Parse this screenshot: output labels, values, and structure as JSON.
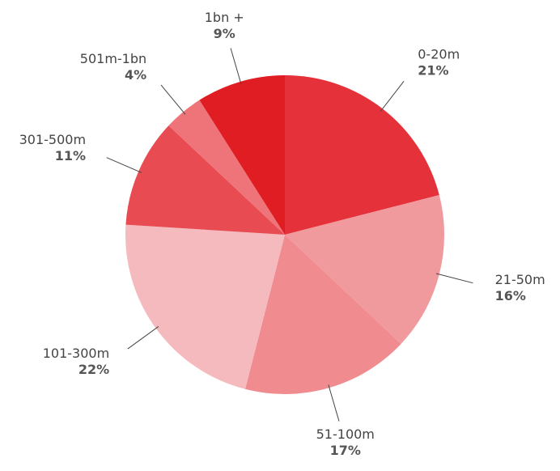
{
  "chart_data": {
    "type": "pie",
    "categories": [
      "0-20m",
      "21-50m",
      "51-100m",
      "101-300m",
      "301-500m",
      "501m-1bn",
      "1bn +"
    ],
    "values": [
      21,
      16,
      17,
      22,
      11,
      4,
      9
    ],
    "value_labels": [
      "21%",
      "16%",
      "17%",
      "22%",
      "11%",
      "4%",
      "9%"
    ],
    "colors": [
      "#e5323a",
      "#f19a9e",
      "#f08b8f",
      "#f5babd",
      "#e84b51",
      "#ee7479",
      "#e11d24"
    ]
  }
}
